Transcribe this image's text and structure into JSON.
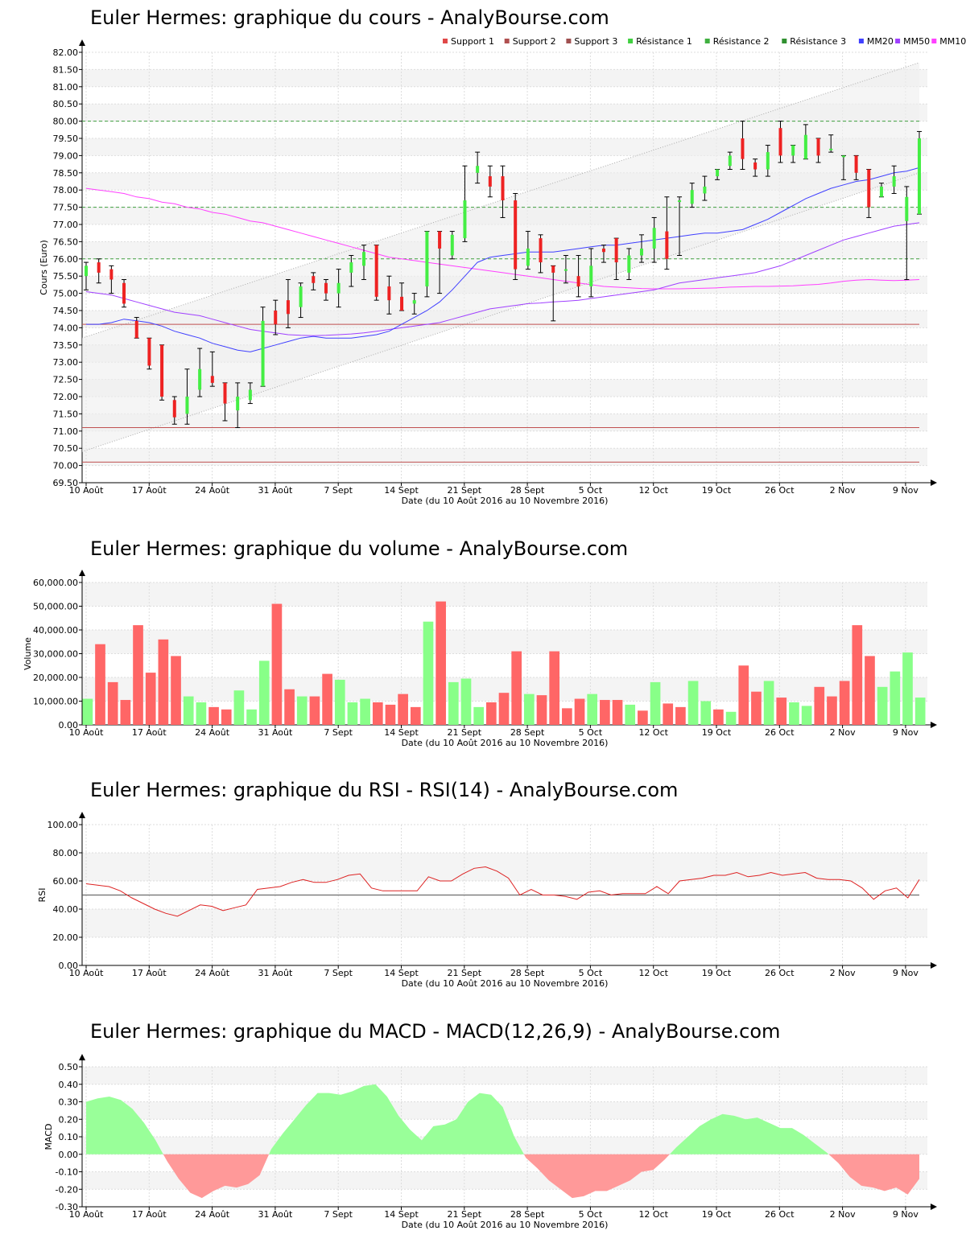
{
  "chart_data": [
    {
      "type": "candlestick",
      "title": "Euler Hermes: graphique du cours - AnalyBourse.com",
      "xlabel": "Date (du 10 Août 2016 au 10 Novembre 2016)",
      "ylabel": "Cours (Euro)",
      "ylim": [
        69.5,
        82.0
      ],
      "yticks": [
        "69.50",
        "70.00",
        "70.50",
        "71.00",
        "71.50",
        "72.00",
        "72.50",
        "73.00",
        "73.50",
        "74.00",
        "74.50",
        "75.00",
        "75.50",
        "76.00",
        "76.50",
        "77.00",
        "77.50",
        "78.00",
        "78.50",
        "79.00",
        "79.50",
        "80.00",
        "80.50",
        "81.00",
        "81.50",
        "82.00"
      ],
      "xticks": [
        "10 Août",
        "17 Août",
        "24 Août",
        "31 Août",
        "7 Sept",
        "14 Sept",
        "21 Sept",
        "28 Sept",
        "5 Oct",
        "12 Oct",
        "19 Oct",
        "26 Oct",
        "2 Nov",
        "9 Nov"
      ],
      "legend": [
        "Support 1",
        "Support 2",
        "Support 3",
        "Résistance 1",
        "Résistance 2",
        "Résistance 3",
        "MM20",
        "MM50",
        "MM100"
      ],
      "legend_colors": [
        "#e04848",
        "#b05050",
        "#a05050",
        "#40d040",
        "#40b040",
        "#309030",
        "#4040ff",
        "#a040ff",
        "#ff40ff"
      ],
      "levels": {
        "support": [
          74.1,
          71.1,
          70.1
        ],
        "resistance": [
          76.0,
          77.5,
          80.0
        ]
      },
      "channel": {
        "upper": [
          73.7,
          81.7
        ],
        "lower": [
          70.4,
          78.5
        ]
      },
      "candles": [
        [
          75.5,
          75.8,
          75.1,
          75.9
        ],
        [
          75.9,
          75.6,
          75.3,
          76.0
        ],
        [
          75.7,
          75.4,
          75.0,
          75.8
        ],
        [
          75.3,
          74.7,
          74.6,
          75.4
        ],
        [
          74.2,
          73.7,
          73.7,
          74.3
        ],
        [
          73.7,
          72.9,
          72.8,
          73.7
        ],
        [
          73.5,
          72.0,
          71.9,
          73.5
        ],
        [
          71.9,
          71.4,
          71.2,
          72.0
        ],
        [
          71.5,
          72.0,
          71.2,
          72.8
        ],
        [
          72.2,
          72.8,
          72.0,
          73.4
        ],
        [
          72.6,
          72.4,
          72.3,
          73.3
        ],
        [
          72.4,
          71.8,
          71.3,
          72.4
        ],
        [
          71.6,
          72.0,
          71.1,
          72.4
        ],
        [
          71.9,
          72.2,
          71.8,
          72.4
        ],
        [
          72.3,
          74.2,
          72.3,
          74.6
        ],
        [
          74.5,
          74.1,
          73.8,
          74.8
        ],
        [
          74.8,
          74.4,
          74.0,
          75.4
        ],
        [
          74.6,
          75.2,
          74.3,
          75.3
        ],
        [
          75.5,
          75.3,
          75.1,
          75.6
        ],
        [
          75.3,
          75.0,
          74.8,
          75.4
        ],
        [
          75.0,
          75.3,
          74.6,
          75.7
        ],
        [
          75.6,
          75.9,
          75.2,
          76.1
        ],
        [
          75.8,
          76.2,
          75.4,
          76.4
        ],
        [
          76.4,
          74.9,
          74.8,
          76.4
        ],
        [
          75.2,
          74.8,
          74.4,
          75.5
        ],
        [
          74.9,
          74.5,
          74.5,
          75.3
        ],
        [
          74.7,
          74.8,
          74.4,
          75.0
        ],
        [
          75.2,
          76.8,
          74.9,
          76.8
        ],
        [
          76.8,
          76.3,
          75.0,
          76.8
        ],
        [
          76.1,
          76.7,
          76.0,
          76.8
        ],
        [
          76.6,
          77.7,
          76.5,
          78.7
        ],
        [
          78.5,
          78.7,
          78.2,
          79.1
        ],
        [
          78.4,
          78.1,
          77.8,
          78.7
        ],
        [
          78.4,
          77.7,
          77.2,
          78.7
        ],
        [
          77.7,
          75.7,
          75.4,
          77.9
        ],
        [
          75.8,
          76.3,
          75.7,
          76.8
        ],
        [
          76.6,
          75.9,
          75.6,
          76.7
        ],
        [
          75.8,
          75.6,
          74.2,
          75.8
        ],
        [
          75.7,
          75.7,
          75.3,
          76.1
        ],
        [
          75.5,
          75.2,
          74.9,
          76.1
        ],
        [
          75.2,
          75.8,
          74.9,
          76.3
        ],
        [
          76.3,
          76.2,
          75.9,
          76.4
        ],
        [
          76.6,
          75.9,
          75.4,
          76.6
        ],
        [
          75.6,
          76.1,
          75.4,
          76.3
        ],
        [
          76.1,
          76.3,
          75.9,
          76.7
        ],
        [
          76.3,
          76.9,
          75.9,
          77.2
        ],
        [
          76.8,
          76.0,
          75.7,
          77.8
        ],
        [
          77.7,
          77.7,
          76.1,
          77.8
        ],
        [
          77.6,
          78.0,
          77.5,
          78.2
        ],
        [
          77.9,
          78.1,
          77.7,
          78.4
        ],
        [
          78.4,
          78.6,
          78.3,
          78.6
        ],
        [
          78.7,
          79.0,
          78.6,
          79.1
        ],
        [
          79.5,
          78.9,
          78.6,
          80.0
        ],
        [
          78.8,
          78.6,
          78.4,
          78.9
        ],
        [
          78.6,
          79.1,
          78.4,
          79.3
        ],
        [
          79.8,
          79.0,
          78.8,
          80.0
        ],
        [
          79.0,
          79.3,
          78.8,
          79.3
        ],
        [
          78.9,
          79.6,
          78.9,
          79.9
        ],
        [
          79.5,
          79.0,
          78.8,
          79.5
        ],
        [
          79.2,
          79.2,
          79.1,
          79.6
        ],
        [
          79.0,
          79.0,
          78.3,
          79.0
        ],
        [
          79.0,
          78.5,
          78.3,
          79.0
        ],
        [
          78.6,
          77.5,
          77.2,
          78.6
        ],
        [
          77.8,
          78.1,
          77.8,
          78.2
        ],
        [
          78.1,
          78.4,
          77.9,
          78.7
        ],
        [
          77.1,
          77.8,
          75.4,
          78.1
        ],
        [
          77.3,
          79.5,
          77.3,
          79.7
        ]
      ],
      "mm20": [
        74.1,
        74.1,
        74.15,
        74.25,
        74.2,
        74.15,
        74.05,
        73.9,
        73.8,
        73.7,
        73.55,
        73.45,
        73.35,
        73.3,
        73.4,
        73.5,
        73.6,
        73.7,
        73.75,
        73.7,
        73.7,
        73.7,
        73.75,
        73.8,
        73.9,
        74.1,
        74.3,
        74.5,
        74.75,
        75.1,
        75.5,
        75.9,
        76.05,
        76.1,
        76.15,
        76.2,
        76.2,
        76.2,
        76.25,
        76.3,
        76.35,
        76.4,
        76.4,
        76.45,
        76.5,
        76.55,
        76.6,
        76.65,
        76.7,
        76.75,
        76.75,
        76.8,
        76.85,
        77.0,
        77.15,
        77.35,
        77.55,
        77.75,
        77.9,
        78.05,
        78.15,
        78.25,
        78.3,
        78.4,
        78.5,
        78.55,
        78.65
      ],
      "mm50": [
        75.05,
        75.0,
        74.95,
        74.85,
        74.75,
        74.65,
        74.55,
        74.45,
        74.4,
        74.35,
        74.25,
        74.15,
        74.05,
        73.95,
        73.9,
        73.85,
        73.8,
        73.78,
        73.77,
        73.78,
        73.8,
        73.82,
        73.85,
        73.9,
        73.95,
        74.0,
        74.05,
        74.1,
        74.15,
        74.25,
        74.35,
        74.45,
        74.55,
        74.6,
        74.65,
        74.7,
        74.72,
        74.75,
        74.77,
        74.8,
        74.85,
        74.9,
        74.95,
        75.0,
        75.05,
        75.1,
        75.2,
        75.3,
        75.35,
        75.4,
        75.45,
        75.5,
        75.55,
        75.6,
        75.7,
        75.8,
        75.95,
        76.1,
        76.25,
        76.4,
        76.55,
        76.65,
        76.75,
        76.85,
        76.95,
        77.0,
        77.05
      ],
      "mm100": [
        78.05,
        78.0,
        77.95,
        77.9,
        77.8,
        77.75,
        77.65,
        77.6,
        77.5,
        77.45,
        77.35,
        77.3,
        77.2,
        77.1,
        77.05,
        76.95,
        76.85,
        76.75,
        76.65,
        76.55,
        76.45,
        76.35,
        76.25,
        76.15,
        76.05,
        76.0,
        75.95,
        75.9,
        75.85,
        75.8,
        75.75,
        75.7,
        75.65,
        75.6,
        75.55,
        75.5,
        75.45,
        75.4,
        75.35,
        75.3,
        75.25,
        75.2,
        75.18,
        75.16,
        75.14,
        75.13,
        75.13,
        75.13,
        75.14,
        75.15,
        75.16,
        75.18,
        75.19,
        75.2,
        75.2,
        75.21,
        75.22,
        75.24,
        75.26,
        75.3,
        75.35,
        75.38,
        75.4,
        75.38,
        75.37,
        75.38,
        75.4
      ]
    },
    {
      "type": "bar",
      "title": "Euler Hermes: graphique du volume - AnalyBourse.com",
      "xlabel": "Date (du 10 Août 2016 au 10 Novembre 2016)",
      "ylabel": "Volume",
      "ylim": [
        0,
        60000
      ],
      "yticks": [
        "0.00",
        "10,000.00",
        "20,000.00",
        "30,000.00",
        "40,000.00",
        "50,000.00",
        "60,000.00"
      ],
      "xticks": [
        "10 Août",
        "17 Août",
        "24 Août",
        "31 Août",
        "7 Sept",
        "14 Sept",
        "21 Sept",
        "28 Sept",
        "5 Oct",
        "12 Oct",
        "19 Oct",
        "26 Oct",
        "2 Nov",
        "9 Nov"
      ],
      "values": [
        11000,
        34000,
        18000,
        10500,
        42000,
        22000,
        36000,
        29000,
        12000,
        9500,
        7500,
        6500,
        14500,
        6500,
        27000,
        51000,
        15000,
        12000,
        12000,
        21500,
        19000,
        9500,
        11000,
        9500,
        8500,
        13000,
        7500,
        43500,
        52000,
        18000,
        19500,
        7500,
        9500,
        13500,
        31000,
        13000,
        12500,
        31000,
        7000,
        11000,
        13000,
        10500,
        10500,
        8500,
        6000,
        18000,
        9000,
        7500,
        18500,
        10000,
        6500,
        5500,
        25000,
        14000,
        18500,
        11500,
        9500,
        8000,
        16000,
        12000,
        18500,
        42000,
        29000,
        16000,
        22500,
        30500,
        11500
      ],
      "colors": [
        "g",
        "r",
        "r",
        "r",
        "r",
        "r",
        "r",
        "r",
        "g",
        "g",
        "r",
        "r",
        "g",
        "g",
        "g",
        "r",
        "r",
        "g",
        "r",
        "r",
        "g",
        "g",
        "g",
        "r",
        "r",
        "r",
        "r",
        "g",
        "r",
        "g",
        "g",
        "g",
        "r",
        "r",
        "r",
        "g",
        "r",
        "r",
        "r",
        "r",
        "g",
        "r",
        "r",
        "g",
        "r",
        "g",
        "r",
        "r",
        "g",
        "g",
        "r",
        "g",
        "r",
        "r",
        "g",
        "r",
        "g",
        "g",
        "r",
        "r",
        "r",
        "r",
        "r",
        "g",
        "g",
        "g",
        "g"
      ]
    },
    {
      "type": "line",
      "title": "Euler Hermes: graphique du RSI - RSI(14) - AnalyBourse.com",
      "xlabel": "Date (du 10 Août 2016 au 10 Novembre 2016)",
      "ylabel": "RSI",
      "ylim": [
        0,
        100
      ],
      "yticks": [
        "0.00",
        "20.00",
        "40.00",
        "60.00",
        "80.00",
        "100.00"
      ],
      "xticks": [
        "10 Août",
        "17 Août",
        "24 Août",
        "31 Août",
        "7 Sept",
        "14 Sept",
        "21 Sept",
        "28 Sept",
        "5 Oct",
        "12 Oct",
        "19 Oct",
        "26 Oct",
        "2 Nov",
        "9 Nov"
      ],
      "reference": 50,
      "values": [
        58,
        57,
        56,
        53,
        48,
        44,
        40,
        37,
        35,
        39,
        43,
        42,
        39,
        41,
        43,
        54,
        55,
        56,
        59,
        61,
        59,
        59,
        61,
        64,
        65,
        55,
        53,
        53,
        53,
        53,
        63,
        60,
        60,
        65,
        69,
        70,
        67,
        62,
        50,
        54,
        50,
        50,
        49,
        47,
        52,
        53,
        50,
        51,
        51,
        51,
        56,
        51,
        60,
        61,
        62,
        64,
        64,
        66,
        63,
        64,
        66,
        64,
        65,
        66,
        62,
        61,
        61,
        60,
        55,
        47,
        53,
        55,
        48,
        61
      ]
    },
    {
      "type": "area",
      "title": "Euler Hermes: graphique du MACD - MACD(12,26,9) - AnalyBourse.com",
      "xlabel": "Date (du 10 Août 2016 au 10 Novembre 2016)",
      "ylabel": "MACD",
      "ylim": [
        -0.3,
        0.5
      ],
      "yticks": [
        "-0.30",
        "-0.20",
        "-0.10",
        "0.00",
        "0.10",
        "0.20",
        "0.30",
        "0.40",
        "0.50"
      ],
      "xticks": [
        "10 Août",
        "17 Août",
        "24 Août",
        "31 Août",
        "7 Sept",
        "14 Sept",
        "21 Sept",
        "28 Sept",
        "5 Oct",
        "12 Oct",
        "19 Oct",
        "26 Oct",
        "2 Nov",
        "9 Nov"
      ],
      "values": [
        0.3,
        0.32,
        0.33,
        0.31,
        0.26,
        0.18,
        0.08,
        -0.04,
        -0.14,
        -0.22,
        -0.25,
        -0.21,
        -0.18,
        -0.19,
        -0.17,
        -0.12,
        0.03,
        0.12,
        0.2,
        0.28,
        0.35,
        0.35,
        0.34,
        0.36,
        0.39,
        0.4,
        0.33,
        0.22,
        0.14,
        0.08,
        0.16,
        0.17,
        0.2,
        0.3,
        0.35,
        0.34,
        0.27,
        0.1,
        -0.02,
        -0.08,
        -0.15,
        -0.2,
        -0.25,
        -0.24,
        -0.21,
        -0.21,
        -0.18,
        -0.15,
        -0.1,
        -0.09,
        -0.03,
        0.04,
        0.1,
        0.16,
        0.2,
        0.23,
        0.22,
        0.2,
        0.21,
        0.18,
        0.15,
        0.15,
        0.11,
        0.06,
        0.01,
        -0.05,
        -0.13,
        -0.18,
        -0.19,
        -0.21,
        -0.19,
        -0.23,
        -0.14
      ]
    }
  ],
  "colors": {
    "up": "#44ee44",
    "down": "#ee2222",
    "vol_up": "#88ff88",
    "vol_down": "#ff6666",
    "macd_pos": "#99ff99",
    "macd_neg": "#ff9999",
    "rsi_line": "#dd2222"
  }
}
